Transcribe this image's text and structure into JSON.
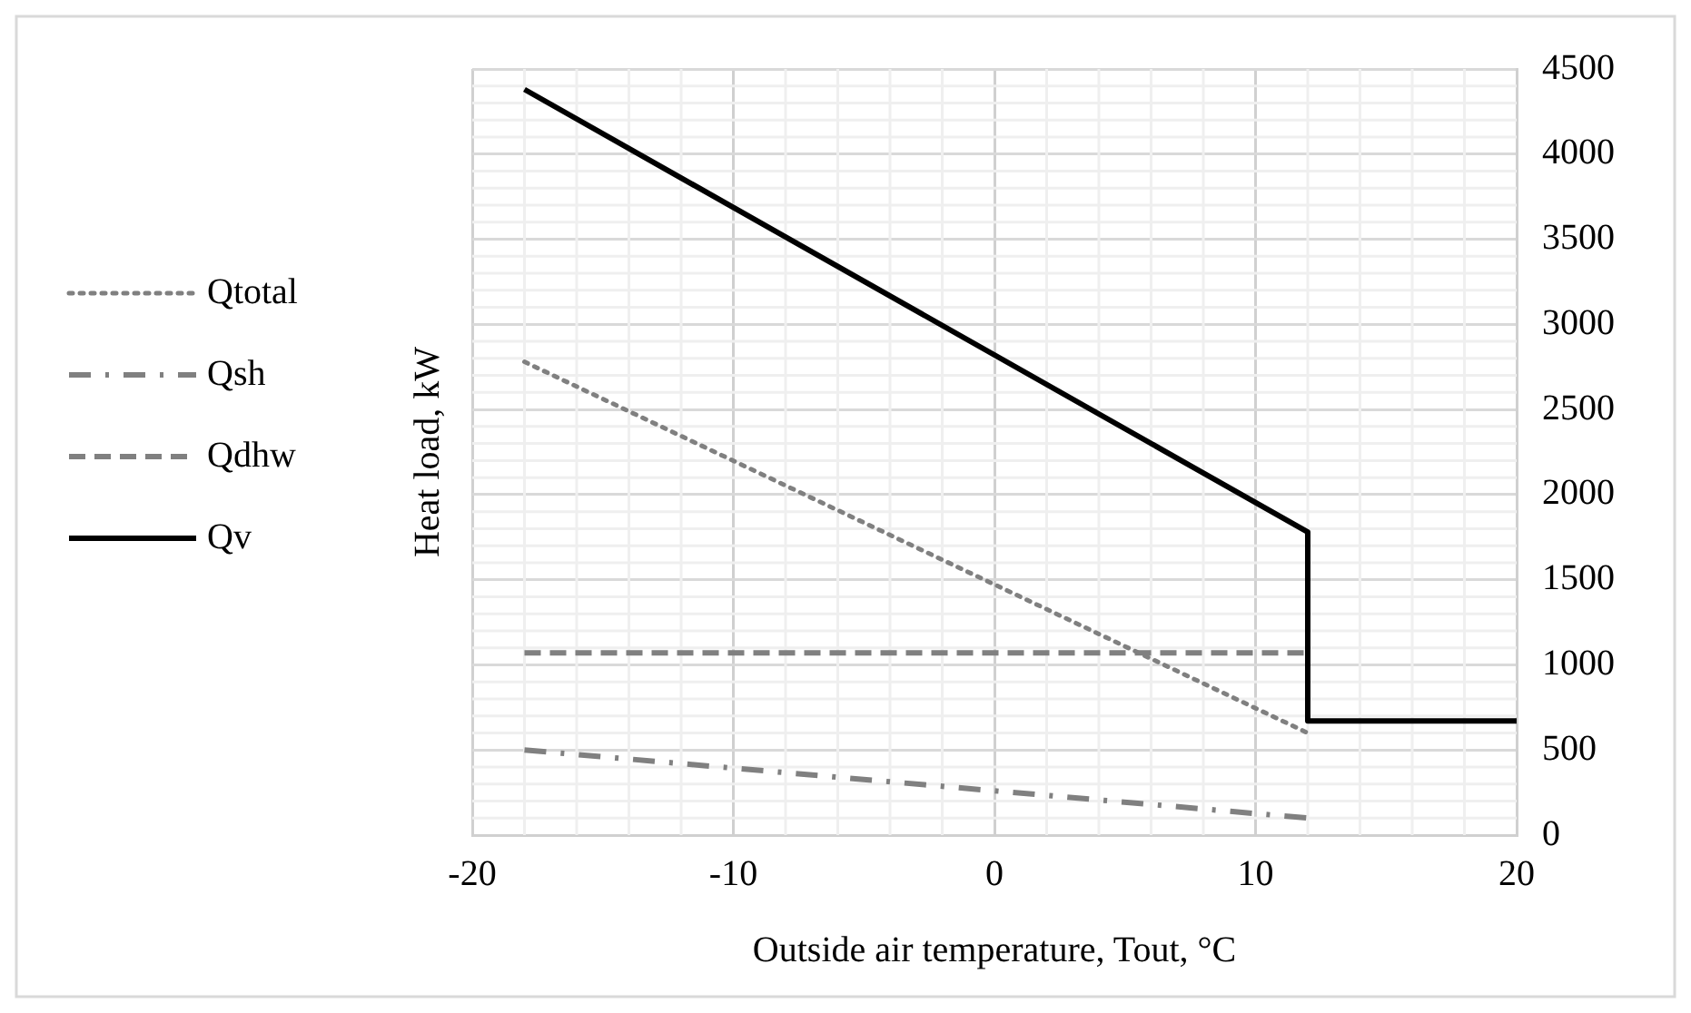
{
  "chart_data": {
    "type": "line",
    "xlabel": "Outside air temperature, Tout, °C",
    "ylabel": "Heat load, kW",
    "xlim": [
      -20,
      20
    ],
    "xticks": [
      -20,
      -10,
      0,
      10,
      20
    ],
    "ylim": [
      0,
      4500
    ],
    "yticks": [
      0,
      500,
      1000,
      1500,
      2000,
      2500,
      3000,
      3500,
      4000,
      4500
    ],
    "grid": true,
    "legend": "left",
    "marker": "none",
    "series": [
      {
        "name": "Qtotal",
        "color": "#808080",
        "line_style": "dotted",
        "x": [
          -18,
          12
        ],
        "values": [
          2780,
          600
        ]
      },
      {
        "name": "Qsh",
        "color": "#808080",
        "line_style": "dashdot",
        "x": [
          -18,
          12
        ],
        "values": [
          500,
          100
        ]
      },
      {
        "name": "Qdhw",
        "color": "#808080",
        "line_style": "dashed",
        "x": [
          -18,
          12
        ],
        "values": [
          1070,
          1070
        ]
      },
      {
        "name": "Qv",
        "color": "#000000",
        "line_style": "solid",
        "x": [
          -18,
          12,
          12,
          20
        ],
        "values": [
          4380,
          1780,
          670,
          670
        ]
      }
    ]
  }
}
